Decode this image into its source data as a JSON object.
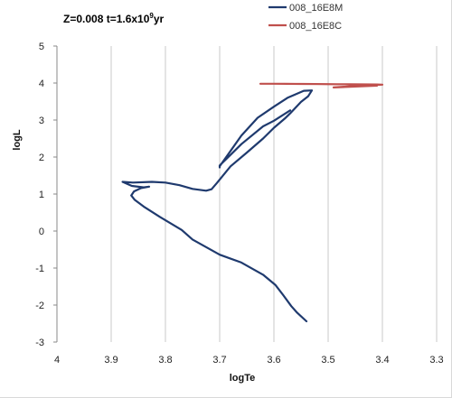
{
  "title": {
    "prefix": "Z=0.008 t=1.6x10",
    "exponent": "9",
    "suffix": "yr"
  },
  "chart_data": {
    "type": "line",
    "title": "Z=0.008 t=1.6x10^9yr",
    "xlabel": "logTe",
    "ylabel": "logL",
    "xlim": [
      4,
      3.3
    ],
    "ylim": [
      -3,
      5
    ],
    "x_reversed": true,
    "grid": "vertical-major",
    "legend_position": "top-right",
    "x_ticks": [
      "4",
      "3.9",
      "3.8",
      "3.7",
      "3.6",
      "3.5",
      "3.4",
      "3.3"
    ],
    "y_ticks": [
      "-3",
      "-2",
      "-1",
      "0",
      "1",
      "2",
      "3",
      "4",
      "5"
    ],
    "series": [
      {
        "name": "008_16E8M",
        "color": "#1f3a6e",
        "points": [
          [
            3.54,
            -2.44
          ],
          [
            3.557,
            -2.21
          ],
          [
            3.568,
            -2.03
          ],
          [
            3.583,
            -1.73
          ],
          [
            3.597,
            -1.46
          ],
          [
            3.62,
            -1.18
          ],
          [
            3.66,
            -0.85
          ],
          [
            3.7,
            -0.64
          ],
          [
            3.75,
            -0.23
          ],
          [
            3.77,
            0.03
          ],
          [
            3.81,
            0.38
          ],
          [
            3.84,
            0.66
          ],
          [
            3.857,
            0.85
          ],
          [
            3.863,
            0.96
          ],
          [
            3.858,
            1.07
          ],
          [
            3.845,
            1.16
          ],
          [
            3.83,
            1.2
          ],
          [
            3.84,
            1.18
          ],
          [
            3.862,
            1.22
          ],
          [
            3.879,
            1.33
          ],
          [
            3.86,
            1.31
          ],
          [
            3.825,
            1.33
          ],
          [
            3.8,
            1.31
          ],
          [
            3.774,
            1.24
          ],
          [
            3.75,
            1.14
          ],
          [
            3.725,
            1.09
          ],
          [
            3.715,
            1.13
          ],
          [
            3.705,
            1.3
          ],
          [
            3.68,
            1.75
          ],
          [
            3.65,
            2.12
          ],
          [
            3.62,
            2.5
          ],
          [
            3.6,
            2.79
          ],
          [
            3.58,
            3.04
          ],
          [
            3.57,
            3.18
          ],
          [
            3.55,
            3.49
          ],
          [
            3.537,
            3.64
          ],
          [
            3.53,
            3.8
          ],
          [
            3.545,
            3.79
          ],
          [
            3.575,
            3.6
          ],
          [
            3.6,
            3.36
          ],
          [
            3.63,
            3.06
          ],
          [
            3.66,
            2.58
          ],
          [
            3.7,
            1.75
          ],
          [
            3.7,
            1.72
          ],
          [
            3.7,
            1.77
          ],
          [
            3.66,
            2.35
          ],
          [
            3.62,
            2.83
          ],
          [
            3.6,
            2.98
          ],
          [
            3.57,
            3.26
          ]
        ]
      },
      {
        "name": "008_16E8C",
        "color": "#c0504d",
        "points": [
          [
            3.625,
            3.98
          ],
          [
            3.58,
            3.98
          ],
          [
            3.52,
            3.97
          ],
          [
            3.46,
            3.965
          ],
          [
            3.41,
            3.96
          ],
          [
            3.4,
            3.955
          ],
          [
            3.44,
            3.93
          ],
          [
            3.49,
            3.88
          ],
          [
            3.45,
            3.905
          ],
          [
            3.41,
            3.93
          ],
          [
            3.45,
            3.96
          ],
          [
            3.5,
            3.97
          ],
          [
            3.55,
            3.975
          ],
          [
            3.6,
            3.98
          ]
        ]
      }
    ]
  }
}
